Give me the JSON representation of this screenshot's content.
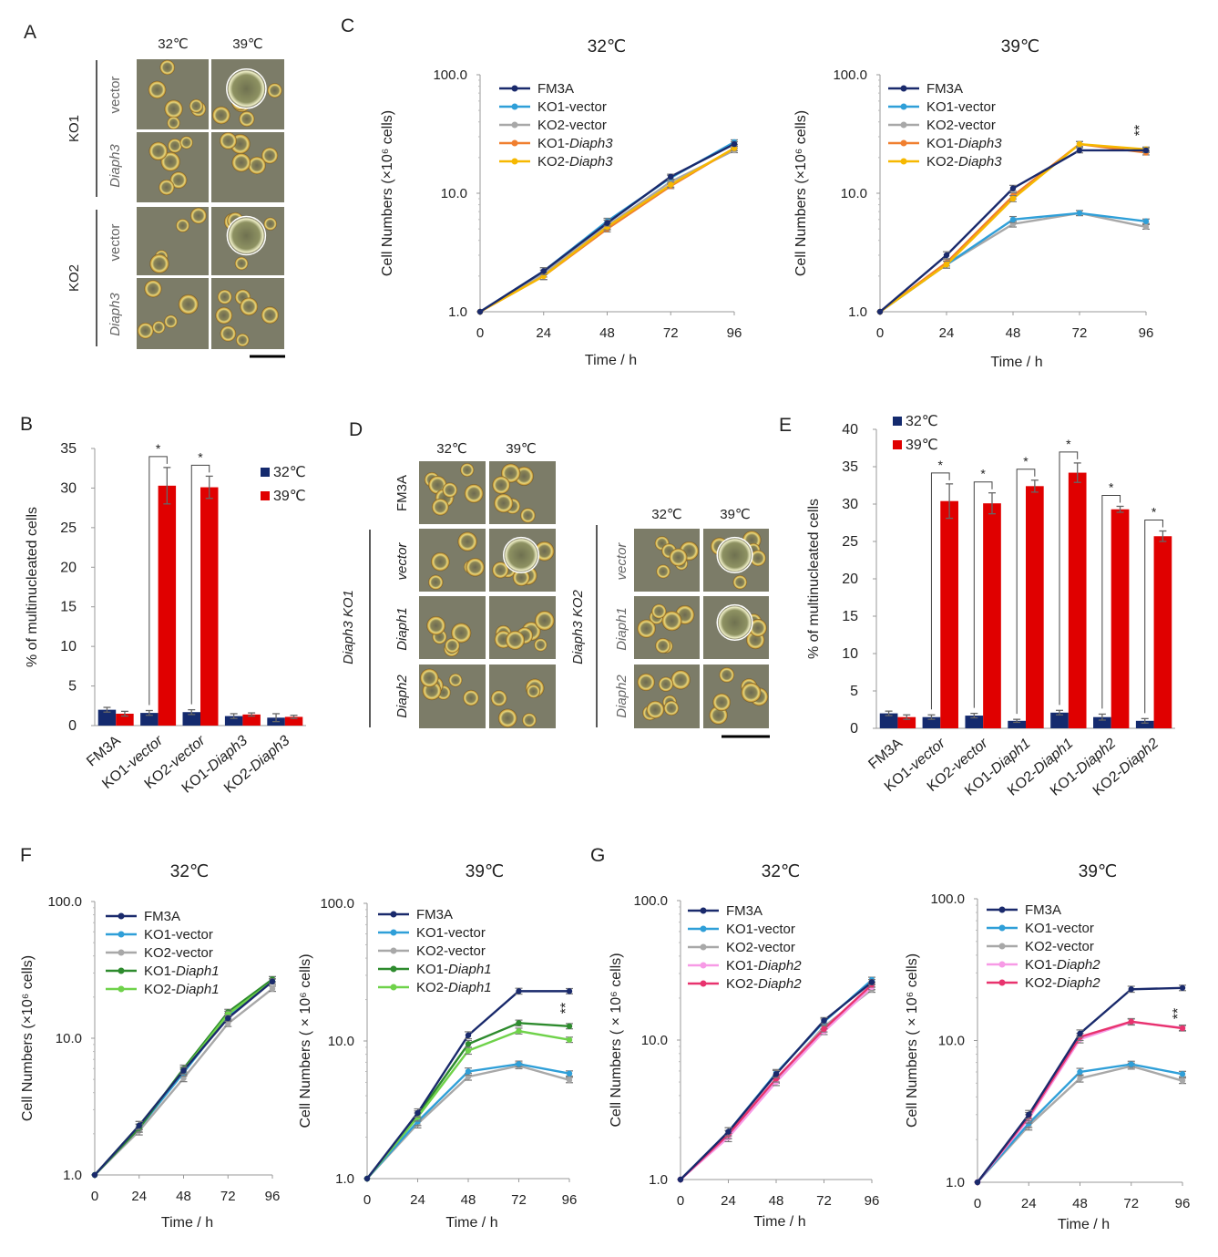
{
  "figure": {
    "panel_labels": [
      "A",
      "B",
      "C",
      "D",
      "E",
      "F",
      "G"
    ],
    "temp_labels": [
      "32℃",
      "39℃"
    ],
    "star_single": "*",
    "star_double": "**",
    "ylabel_growth": "Cell Numbers (×10⁶ cells)",
    "ylabel_growth_spaced": "Cell Numbers ( × 10⁶ cells)",
    "xlabel_time": "Time  / h",
    "ylabel_multi": "% of multinucleated  cells"
  },
  "micrograph_A": {
    "groups": [
      {
        "label": "KO1",
        "rows": [
          "vector",
          "Diaph3"
        ]
      },
      {
        "label": "KO2",
        "rows": [
          "vector",
          "Diaph3"
        ]
      }
    ]
  },
  "micrograph_D": {
    "top_row": "FM3A",
    "left_group": {
      "label": "Diaph3 KO1",
      "rows": [
        "vector",
        "Diaph1",
        "Diaph2"
      ]
    },
    "right_group": {
      "label": "Diaph3 KO2",
      "rows": [
        "vector",
        "Diaph1",
        "Diaph2"
      ]
    }
  },
  "colors": {
    "navy": "#1a2a6c",
    "sky": "#2f9fd8",
    "gray": "#a8a8a8",
    "orange": "#f07f2f",
    "gold": "#f6b800",
    "darkgreen": "#2e8b2e",
    "lightgreen": "#6fd24a",
    "pink": "#f79ae6",
    "magenta": "#e8336e",
    "barnavy": "#142a6e",
    "barred": "#e00000"
  },
  "chart_data": [
    {
      "id": "B",
      "type": "bar",
      "categories": [
        "FM3A",
        "KO1-vector",
        "KO2-vector",
        "KO1-Diaph3",
        "KO2-Diaph3"
      ],
      "series": [
        {
          "name": "32℃",
          "values": [
            2.0,
            1.6,
            1.7,
            1.2,
            1.0
          ],
          "errors": [
            0.3,
            0.3,
            0.3,
            0.3,
            0.5
          ]
        },
        {
          "name": "39℃",
          "values": [
            1.5,
            30.3,
            30.1,
            1.4,
            1.1
          ],
          "errors": [
            0.3,
            2.3,
            1.4,
            0.2,
            0.2
          ]
        }
      ],
      "ylim": [
        0,
        35
      ],
      "yticks": [
        0,
        5,
        10,
        15,
        20,
        25,
        30,
        35
      ],
      "ylabel": "% of multinucleated  cells",
      "legend": "top-right"
    },
    {
      "id": "C-32",
      "type": "line",
      "title": "32℃",
      "x": [
        0,
        24,
        48,
        72,
        96
      ],
      "yscale": "log",
      "ylim": [
        1,
        100
      ],
      "ytick_labels": [
        "1.0",
        "10.0",
        "100.0"
      ],
      "series": [
        {
          "name": "FM3A",
          "values": [
            1,
            2.2,
            5.6,
            13.8,
            26
          ]
        },
        {
          "name": "KO1-vector",
          "values": [
            1,
            2.2,
            5.8,
            13.5,
            27
          ]
        },
        {
          "name": "KO2-vector",
          "values": [
            1,
            2.1,
            5.3,
            12.5,
            23
          ]
        },
        {
          "name": "KO1-Diaph3",
          "values": [
            1,
            2.0,
            5.0,
            11.5,
            24
          ]
        },
        {
          "name": "KO2-Diaph3",
          "values": [
            1,
            2.0,
            5.2,
            11.8,
            24
          ]
        }
      ]
    },
    {
      "id": "C-39",
      "type": "line",
      "title": "39℃",
      "x": [
        0,
        24,
        48,
        72,
        96
      ],
      "yscale": "log",
      "ylim": [
        1,
        100
      ],
      "ytick_labels": [
        "1.0",
        "10.0",
        "100.0"
      ],
      "annotation": "**",
      "series": [
        {
          "name": "FM3A",
          "values": [
            1,
            3.0,
            11.0,
            23,
            23
          ]
        },
        {
          "name": "KO1-vector",
          "values": [
            1,
            2.5,
            6.0,
            6.8,
            5.8
          ]
        },
        {
          "name": "KO2-vector",
          "values": [
            1,
            2.5,
            5.5,
            6.8,
            5.2
          ]
        },
        {
          "name": "KO1-Diaph3",
          "values": [
            1,
            2.6,
            9.5,
            26,
            22
          ]
        },
        {
          "name": "KO2-Diaph3",
          "values": [
            1,
            2.5,
            9.0,
            26,
            23.5
          ]
        }
      ]
    },
    {
      "id": "E",
      "type": "bar",
      "categories": [
        "FM3A",
        "KO1-vector",
        "KO2-vector",
        "KO1-Diaph1",
        "KO2-Diaph1",
        "KO1-Diaph2",
        "KO2-Diaph2"
      ],
      "series": [
        {
          "name": "32℃",
          "values": [
            2.0,
            1.5,
            1.7,
            1.0,
            2.1,
            1.5,
            1.0
          ],
          "errors": [
            0.3,
            0.3,
            0.3,
            0.2,
            0.3,
            0.4,
            0.3
          ]
        },
        {
          "name": "39℃",
          "values": [
            1.5,
            30.4,
            30.1,
            32.4,
            34.2,
            29.3,
            25.7
          ],
          "errors": [
            0.3,
            2.3,
            1.4,
            0.8,
            1.3,
            0.4,
            0.7
          ]
        }
      ],
      "ylim": [
        0,
        40
      ],
      "yticks": [
        0,
        5,
        10,
        15,
        20,
        25,
        30,
        35,
        40
      ],
      "ylabel": "% of multinucleated  cells",
      "legend": "top-left"
    },
    {
      "id": "F-32",
      "type": "line",
      "title": "32℃",
      "x": [
        0,
        24,
        48,
        72,
        96
      ],
      "yscale": "log",
      "ylim": [
        1,
        100
      ],
      "ytick_labels": [
        "1.0",
        "10.0",
        "100.0"
      ],
      "series": [
        {
          "name": "FM3A",
          "values": [
            1,
            2.3,
            5.8,
            14.0,
            26
          ]
        },
        {
          "name": "KO1-vector",
          "values": [
            1,
            2.2,
            5.6,
            14.5,
            27
          ]
        },
        {
          "name": "KO2-vector",
          "values": [
            1,
            2.1,
            5.1,
            12.8,
            23
          ]
        },
        {
          "name": "KO1-Diaph1",
          "values": [
            1,
            2.2,
            6.0,
            15.5,
            27
          ]
        },
        {
          "name": "KO2-Diaph1",
          "values": [
            1,
            2.3,
            5.8,
            15.0,
            26
          ]
        }
      ]
    },
    {
      "id": "F-39",
      "type": "line",
      "title": "39℃",
      "x": [
        0,
        24,
        48,
        72,
        96
      ],
      "yscale": "log",
      "ylim": [
        1,
        100
      ],
      "ytick_labels": [
        "1.0",
        "10.0",
        "100.0"
      ],
      "annotation": "**",
      "series": [
        {
          "name": "FM3A",
          "values": [
            1,
            3.0,
            11.0,
            23,
            23
          ]
        },
        {
          "name": "KO1-vector",
          "values": [
            1,
            2.6,
            6.0,
            6.8,
            5.8
          ]
        },
        {
          "name": "KO2-vector",
          "values": [
            1,
            2.5,
            5.5,
            6.6,
            5.2
          ]
        },
        {
          "name": "KO1-Diaph1",
          "values": [
            1,
            2.9,
            9.5,
            13.5,
            12.8
          ]
        },
        {
          "name": "KO2-Diaph1",
          "values": [
            1,
            2.8,
            8.5,
            11.8,
            10.2
          ]
        }
      ]
    },
    {
      "id": "G-32",
      "type": "line",
      "title": "32℃",
      "x": [
        0,
        24,
        48,
        72,
        96
      ],
      "yscale": "log",
      "ylim": [
        1,
        100
      ],
      "ytick_labels": [
        "1.0",
        "10.0",
        "100.0"
      ],
      "series": [
        {
          "name": "FM3A",
          "values": [
            1,
            2.2,
            5.7,
            13.8,
            26
          ]
        },
        {
          "name": "KO1-vector",
          "values": [
            1,
            2.2,
            5.8,
            13.5,
            27
          ]
        },
        {
          "name": "KO2-vector",
          "values": [
            1,
            2.1,
            5.2,
            12.5,
            23
          ]
        },
        {
          "name": "KO1-Diaph2",
          "values": [
            1,
            2.0,
            5.0,
            11.5,
            24
          ]
        },
        {
          "name": "KO2-Diaph2",
          "values": [
            1,
            2.1,
            5.3,
            12.0,
            25
          ]
        }
      ]
    },
    {
      "id": "G-39",
      "type": "line",
      "title": "39℃",
      "x": [
        0,
        24,
        48,
        72,
        96
      ],
      "yscale": "log",
      "ylim": [
        1,
        100
      ],
      "ytick_labels": [
        "1.0",
        "10.0",
        "100.0"
      ],
      "annotation": "**",
      "series": [
        {
          "name": "FM3A",
          "values": [
            1,
            3.0,
            11.2,
            23,
            23.5
          ]
        },
        {
          "name": "KO1-vector",
          "values": [
            1,
            2.6,
            6.0,
            6.8,
            5.8
          ]
        },
        {
          "name": "KO2-vector",
          "values": [
            1,
            2.5,
            5.4,
            6.6,
            5.2
          ]
        },
        {
          "name": "KO1-Diaph2",
          "values": [
            1,
            2.8,
            10.2,
            13.5,
            12.3
          ]
        },
        {
          "name": "KO2-Diaph2",
          "values": [
            1,
            2.9,
            10.6,
            13.6,
            12.2
          ]
        }
      ]
    }
  ]
}
